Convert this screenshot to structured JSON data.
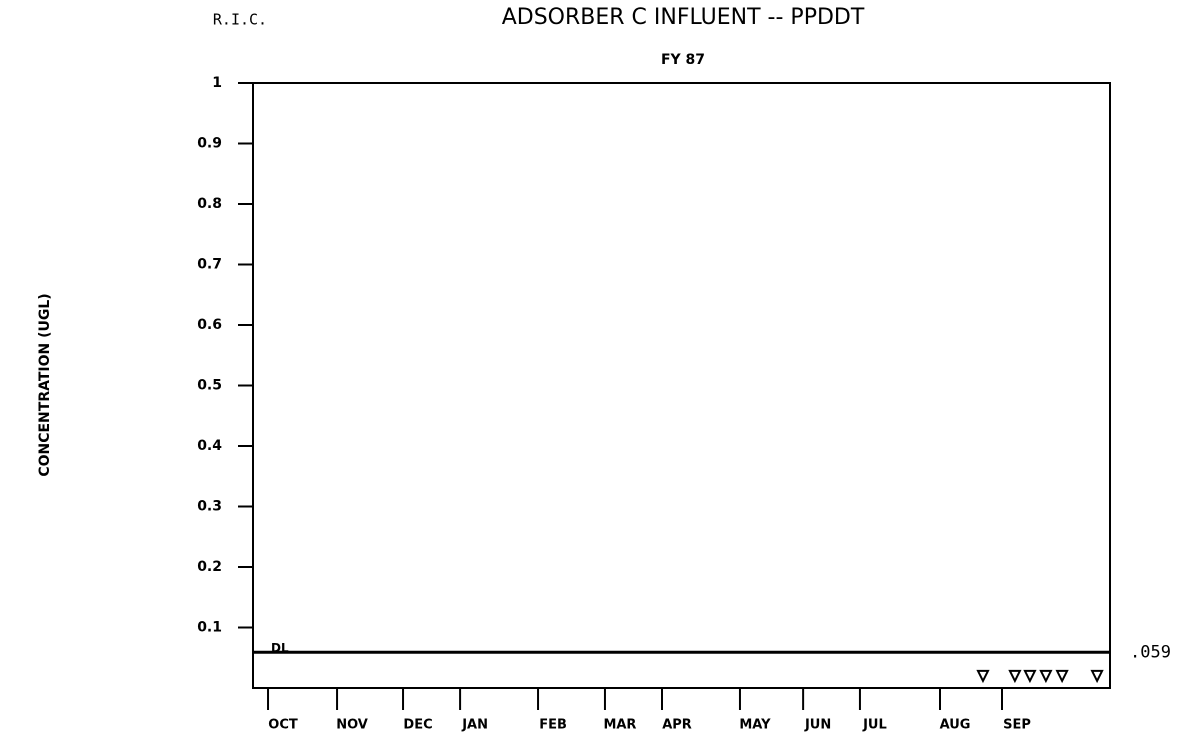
{
  "chart_data": {
    "type": "scatter",
    "corner_label": "R.I.C.",
    "title": "ADSORBER C INFLUENT -- PPDDT",
    "subtitle": "FY 87",
    "y_label": "CONCENTRATION (UGL)",
    "ylim": [
      0,
      1
    ],
    "yticks": [
      0.1,
      0.2,
      0.3,
      0.4,
      0.5,
      0.6,
      0.7,
      0.8,
      0.9,
      1
    ],
    "xlim": [
      0,
      365
    ],
    "xticks": [
      {
        "value": 6.4,
        "label": "OCT"
      },
      {
        "value": 35.8,
        "label": "NOV"
      },
      {
        "value": 63.9,
        "label": "DEC"
      },
      {
        "value": 88.2,
        "label": "JAN"
      },
      {
        "value": 121.4,
        "label": "FEB"
      },
      {
        "value": 149.9,
        "label": "MAR"
      },
      {
        "value": 174.2,
        "label": "APR"
      },
      {
        "value": 207.4,
        "label": "MAY"
      },
      {
        "value": 234.3,
        "label": "JUN"
      },
      {
        "value": 258.5,
        "label": "JUL"
      },
      {
        "value": 292.6,
        "label": "AUG"
      },
      {
        "value": 319.0,
        "label": "SEP"
      }
    ],
    "reference_line": {
      "label": "DL",
      "value": 0.059,
      "value_label": ".059"
    },
    "points": {
      "x": [
        310.9,
        324.5,
        330.9,
        337.7,
        344.6,
        359.5
      ],
      "y": [
        0.02,
        0.02,
        0.02,
        0.02,
        0.02,
        0.02
      ]
    },
    "color": "#000000"
  }
}
